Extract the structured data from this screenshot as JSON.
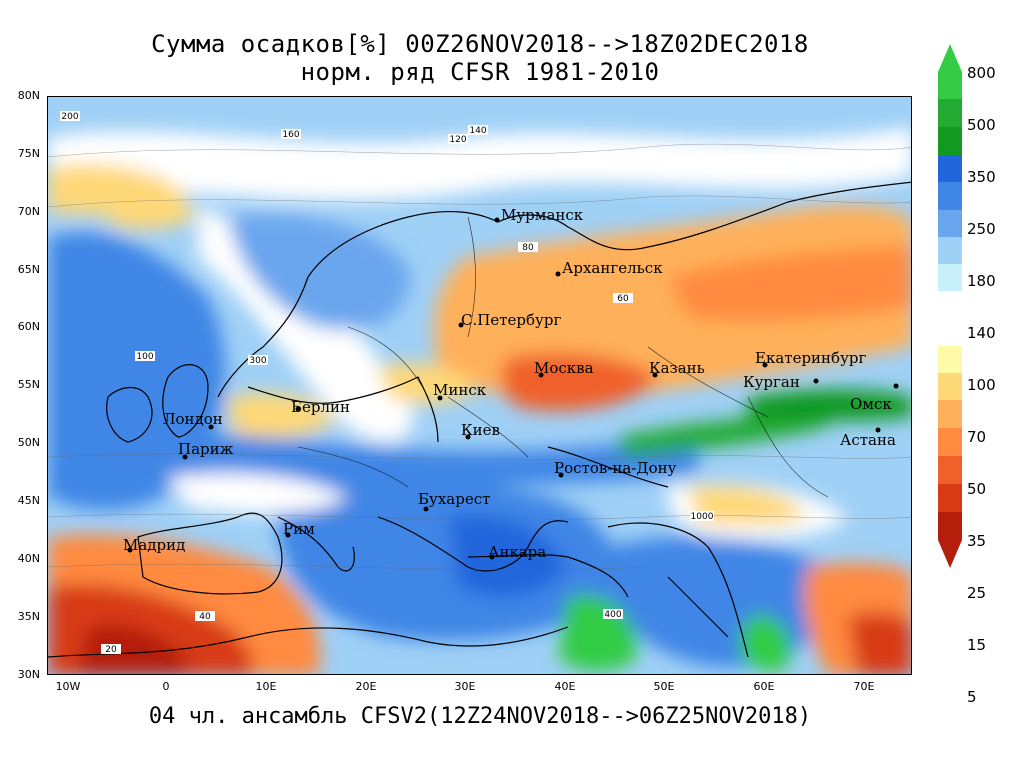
{
  "title_line1": "Сумма осадков[%] 00Z26NOV2018-->18Z02DEC2018",
  "title_line2": "норм. ряд CFSR 1981-2010",
  "footer": "04 чл. ансамбль CFSV2(12Z24NOV2018-->06Z25NOV2018)",
  "lat_labels": [
    "80N",
    "75N",
    "70N",
    "65N",
    "60N",
    "55N",
    "50N",
    "45N",
    "40N",
    "35N",
    "30N"
  ],
  "lon_labels": [
    "10W",
    "0",
    "10E",
    "20E",
    "30E",
    "40E",
    "50E",
    "60E",
    "70E"
  ],
  "colorbar": {
    "labels": [
      "800",
      "500",
      "350",
      "250",
      "180",
      "140",
      "100",
      "70",
      "50",
      "35",
      "25",
      "15",
      "5"
    ],
    "colors": [
      "#33cc44",
      "#22aa33",
      "#119922",
      "#2266dd",
      "#3f86e6",
      "#6aa6ee",
      "#9fd0f6",
      "#c8f0fa",
      "#ffffff",
      "#fffaa8",
      "#ffd878",
      "#ffb05a",
      "#ff8a40",
      "#f0602a",
      "#d83a14",
      "#b41e0a"
    ]
  },
  "cities": [
    {
      "name": "Мурманск"
    },
    {
      "name": "Архангельск"
    },
    {
      "name": "С.Петербург"
    },
    {
      "name": "Москва"
    },
    {
      "name": "Казань"
    },
    {
      "name": "Екатеринбург"
    },
    {
      "name": "Курган"
    },
    {
      "name": "Омск"
    },
    {
      "name": "Астана"
    },
    {
      "name": "Минск"
    },
    {
      "name": "Берлин"
    },
    {
      "name": "Лондон"
    },
    {
      "name": "Париж"
    },
    {
      "name": "Киев"
    },
    {
      "name": "Ростов-на-Дону"
    },
    {
      "name": "Бухарест"
    },
    {
      "name": "Рим"
    },
    {
      "name": "Мадрид"
    },
    {
      "name": "Анкара"
    }
  ],
  "contour_labels": [
    "200",
    "160",
    "140",
    "120",
    "100",
    "80",
    "60",
    "40",
    "20",
    "300",
    "400",
    "1000"
  ]
}
